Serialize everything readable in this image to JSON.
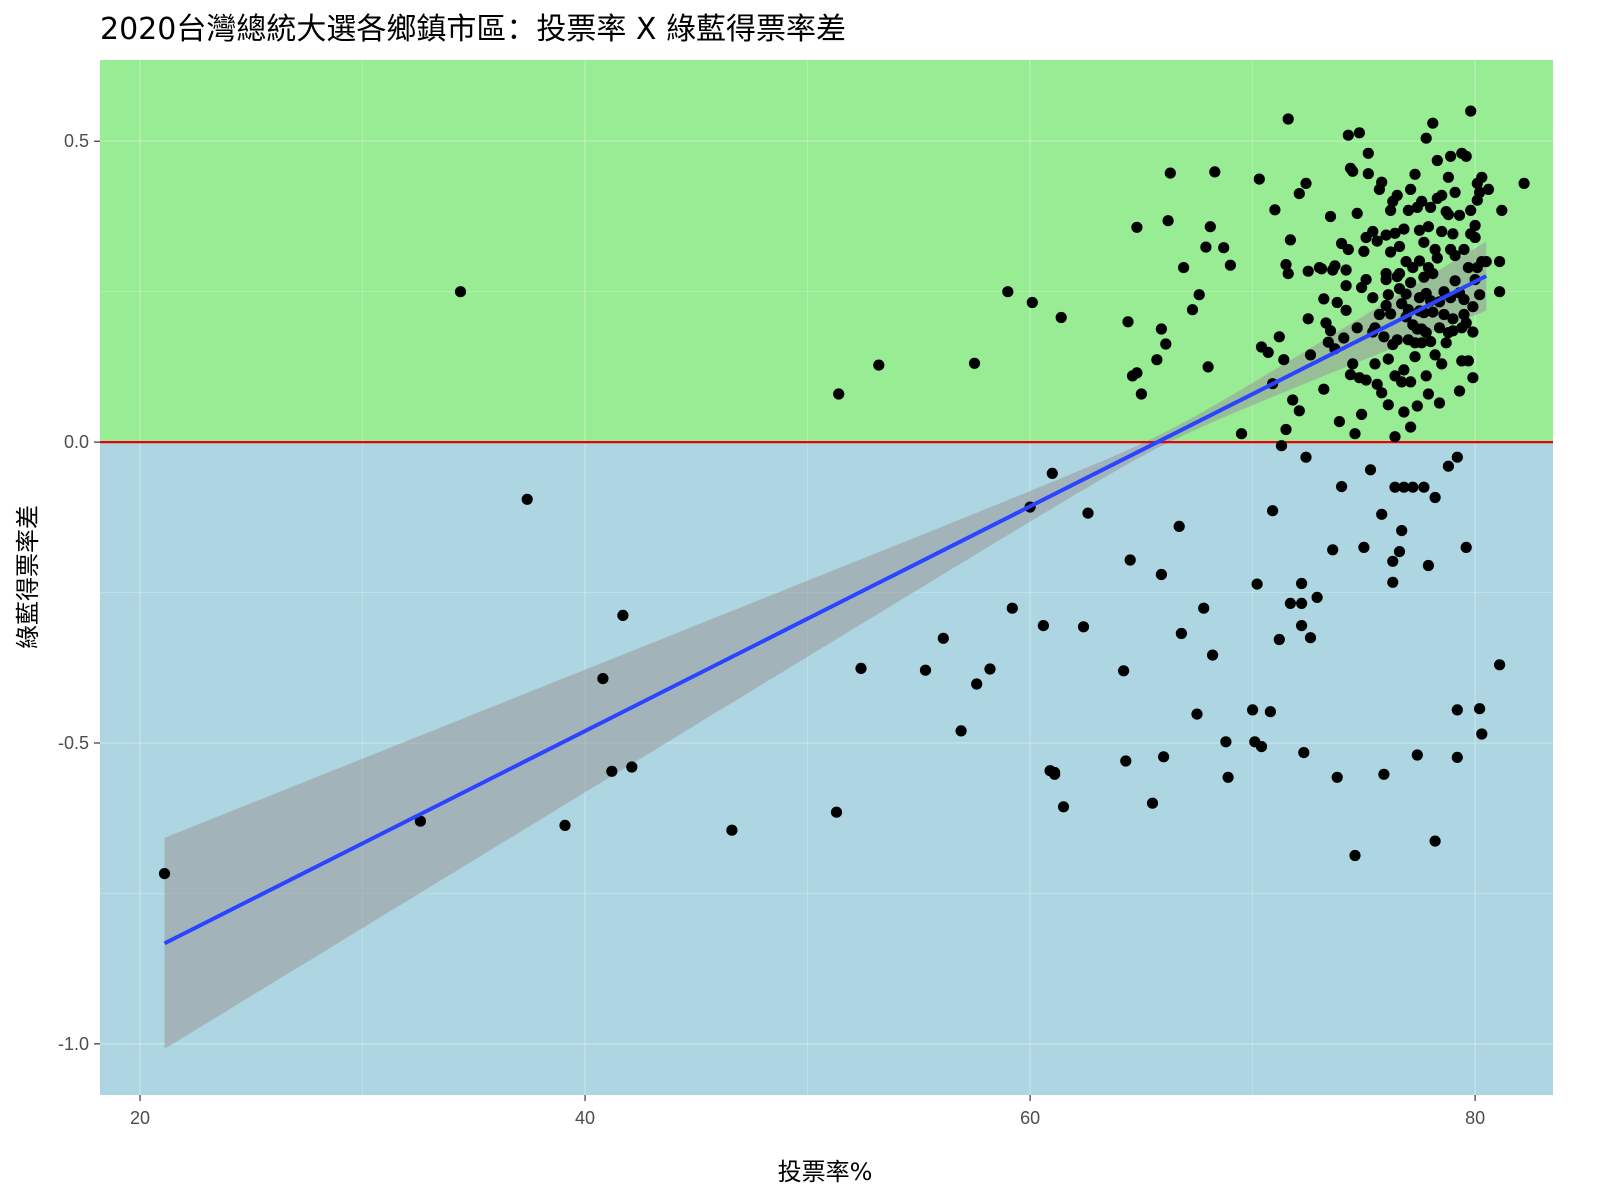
{
  "title": "2020台灣總統大選各鄉鎮市區：投票率 X 綠藍得票率差",
  "colors": {
    "positive_region": "#98EC94",
    "negative_region": "#ADD6E2",
    "zero_line": "#E8000B",
    "fit_line": "#2B44FF",
    "confidence_band": "#999999",
    "points": "#000000"
  },
  "chart_data": {
    "type": "scatter",
    "title": "2020台灣總統大選各鄉鎮市區：投票率 X 綠藍得票率差",
    "xlabel": "投票率%",
    "ylabel": "綠藍得票率差",
    "xlim": [
      18.2,
      83.5
    ],
    "ylim": [
      -1.085,
      0.635
    ],
    "x_ticks": [
      20,
      40,
      60,
      80
    ],
    "x_tick_labels": [
      "20",
      "40",
      "60",
      "80"
    ],
    "y_ticks": [
      0.5,
      0.0,
      -0.5,
      -1.0
    ],
    "y_tick_labels": [
      "0.5",
      "0.0",
      "-0.5",
      "-1.0"
    ],
    "grid": true,
    "reference_line": {
      "y": 0.0
    },
    "regions": [
      {
        "name": "positive",
        "y_from": 0.0,
        "y_to": 0.635
      },
      {
        "name": "negative",
        "y_from": -1.085,
        "y_to": 0.0
      }
    ],
    "fit": {
      "method": "linear",
      "x_range": [
        21.1,
        80.5
      ],
      "y_at_start": -0.833,
      "y_at_end": 0.276,
      "ci_at_start": [
        -1.0,
        -0.659
      ],
      "ci_at_end": [
        0.236,
        0.316
      ],
      "ci_narrowest_x": 66.0
    },
    "points": [
      [
        21.1,
        -0.717
      ],
      [
        32.6,
        -0.63
      ],
      [
        34.4,
        0.25
      ],
      [
        37.4,
        -0.095
      ],
      [
        39.1,
        -0.637
      ],
      [
        40.8,
        -0.393
      ],
      [
        41.2,
        -0.547
      ],
      [
        41.7,
        -0.288
      ],
      [
        42.1,
        -0.54
      ],
      [
        46.6,
        -0.645
      ],
      [
        51.3,
        -0.615
      ],
      [
        51.4,
        0.08
      ],
      [
        52.4,
        -0.376
      ],
      [
        53.2,
        0.128
      ],
      [
        55.3,
        -0.379
      ],
      [
        56.1,
        -0.326
      ],
      [
        56.9,
        -0.48
      ],
      [
        57.5,
        0.131
      ],
      [
        57.6,
        -0.402
      ],
      [
        58.2,
        -0.377
      ],
      [
        59.0,
        0.25
      ],
      [
        59.2,
        -0.276
      ],
      [
        60.0,
        -0.108
      ],
      [
        60.1,
        0.232
      ],
      [
        60.6,
        -0.305
      ],
      [
        60.9,
        -0.546
      ],
      [
        61.0,
        -0.052
      ],
      [
        61.1,
        -0.552
      ],
      [
        61.1,
        -0.549
      ],
      [
        61.4,
        0.207
      ],
      [
        61.5,
        -0.606
      ],
      [
        62.4,
        -0.307
      ],
      [
        62.6,
        -0.118
      ],
      [
        64.2,
        -0.38
      ],
      [
        64.3,
        -0.53
      ],
      [
        64.4,
        0.2
      ],
      [
        64.5,
        -0.196
      ],
      [
        64.6,
        0.11
      ],
      [
        64.8,
        0.115
      ],
      [
        64.8,
        0.357
      ],
      [
        65.0,
        0.08
      ],
      [
        65.5,
        -0.6
      ],
      [
        65.7,
        0.137
      ],
      [
        65.9,
        -0.22
      ],
      [
        65.9,
        0.188
      ],
      [
        66.0,
        -0.523
      ],
      [
        66.1,
        0.163
      ],
      [
        66.2,
        0.368
      ],
      [
        66.3,
        0.447
      ],
      [
        66.7,
        -0.14
      ],
      [
        66.8,
        -0.318
      ],
      [
        66.9,
        0.29
      ],
      [
        67.3,
        0.22
      ],
      [
        67.5,
        -0.452
      ],
      [
        67.6,
        0.245
      ],
      [
        67.8,
        -0.276
      ],
      [
        67.9,
        0.324
      ],
      [
        68.0,
        0.125
      ],
      [
        68.1,
        0.358
      ],
      [
        68.2,
        -0.354
      ],
      [
        68.3,
        0.449
      ],
      [
        68.7,
        0.323
      ],
      [
        68.8,
        -0.498
      ],
      [
        68.9,
        -0.557
      ],
      [
        69.0,
        0.294
      ],
      [
        69.5,
        0.014
      ],
      [
        70.0,
        -0.445
      ],
      [
        70.1,
        -0.498
      ],
      [
        70.2,
        -0.236
      ],
      [
        70.3,
        0.437
      ],
      [
        70.4,
        0.158
      ],
      [
        70.4,
        -0.506
      ],
      [
        70.7,
        0.149
      ],
      [
        70.8,
        -0.448
      ],
      [
        70.9,
        0.097
      ],
      [
        70.9,
        -0.114
      ],
      [
        71.0,
        0.386
      ],
      [
        71.2,
        -0.328
      ],
      [
        71.2,
        0.175
      ],
      [
        71.3,
        -0.006
      ],
      [
        71.4,
        0.137
      ],
      [
        71.5,
        0.295
      ],
      [
        71.5,
        0.021
      ],
      [
        71.6,
        0.28
      ],
      [
        71.6,
        0.537
      ],
      [
        71.7,
        -0.268
      ],
      [
        71.7,
        0.336
      ],
      [
        71.8,
        0.07
      ],
      [
        72.1,
        0.052
      ],
      [
        72.1,
        0.413
      ],
      [
        72.2,
        -0.268
      ],
      [
        72.2,
        -0.235
      ],
      [
        72.2,
        -0.305
      ],
      [
        72.3,
        -0.516
      ],
      [
        72.4,
        0.43
      ],
      [
        72.4,
        -0.025
      ],
      [
        72.5,
        0.205
      ],
      [
        72.5,
        0.284
      ],
      [
        72.6,
        -0.325
      ],
      [
        72.6,
        0.145
      ],
      [
        72.9,
        -0.258
      ],
      [
        73.0,
        0.29
      ],
      [
        73.1,
        0.288
      ],
      [
        73.2,
        0.238
      ],
      [
        73.2,
        0.088
      ],
      [
        73.3,
        0.198
      ],
      [
        73.4,
        0.166
      ],
      [
        73.5,
        0.185
      ],
      [
        73.5,
        0.375
      ],
      [
        73.6,
        -0.179
      ],
      [
        73.6,
        0.286
      ],
      [
        73.7,
        0.155
      ],
      [
        73.7,
        0.293
      ],
      [
        73.8,
        0.232
      ],
      [
        73.8,
        -0.557
      ],
      [
        73.9,
        0.034
      ],
      [
        74.0,
        0.33
      ],
      [
        74.0,
        -0.074
      ],
      [
        74.1,
        0.173
      ],
      [
        74.2,
        0.26
      ],
      [
        74.2,
        0.219
      ],
      [
        74.2,
        0.286
      ],
      [
        74.3,
        0.51
      ],
      [
        74.3,
        0.32
      ],
      [
        74.4,
        0.112
      ],
      [
        74.4,
        0.455
      ],
      [
        74.5,
        0.45
      ],
      [
        74.5,
        0.13
      ],
      [
        74.6,
        -0.687
      ],
      [
        74.6,
        0.014
      ],
      [
        74.7,
        0.19
      ],
      [
        74.7,
        0.38
      ],
      [
        74.8,
        0.514
      ],
      [
        74.8,
        0.107
      ],
      [
        74.9,
        0.257
      ],
      [
        74.9,
        0.046
      ],
      [
        75.0,
        0.317
      ],
      [
        75.0,
        -0.175
      ],
      [
        75.1,
        0.27
      ],
      [
        75.1,
        0.103
      ],
      [
        75.1,
        0.34
      ],
      [
        75.2,
        0.48
      ],
      [
        75.2,
        0.446
      ],
      [
        75.3,
        -0.046
      ],
      [
        75.4,
        0.35
      ],
      [
        75.4,
        0.24
      ],
      [
        75.4,
        0.183
      ],
      [
        75.5,
        0.19
      ],
      [
        75.5,
        0.13
      ],
      [
        75.6,
        0.096
      ],
      [
        75.6,
        0.334
      ],
      [
        75.7,
        0.212
      ],
      [
        75.7,
        0.42
      ],
      [
        75.8,
        0.432
      ],
      [
        75.8,
        0.082
      ],
      [
        75.8,
        -0.12
      ],
      [
        75.9,
        0.175
      ],
      [
        75.9,
        -0.552
      ],
      [
        76.0,
        0.27
      ],
      [
        76.0,
        0.227
      ],
      [
        76.0,
        0.28
      ],
      [
        76.0,
        0.344
      ],
      [
        76.1,
        0.138
      ],
      [
        76.1,
        0.062
      ],
      [
        76.1,
        0.245
      ],
      [
        76.2,
        0.316
      ],
      [
        76.2,
        0.213
      ],
      [
        76.2,
        0.385
      ],
      [
        76.3,
        -0.198
      ],
      [
        76.3,
        0.4
      ],
      [
        76.3,
        0.162
      ],
      [
        76.3,
        -0.233
      ],
      [
        76.4,
        0.347
      ],
      [
        76.4,
        0.11
      ],
      [
        76.4,
        -0.075
      ],
      [
        76.4,
        0.009
      ],
      [
        76.5,
        0.41
      ],
      [
        76.5,
        0.275
      ],
      [
        76.5,
        0.17
      ],
      [
        76.6,
        0.255
      ],
      [
        76.6,
        -0.182
      ],
      [
        76.6,
        0.28
      ],
      [
        76.6,
        0.325
      ],
      [
        76.7,
        0.1
      ],
      [
        76.7,
        0.23
      ],
      [
        76.7,
        -0.147
      ],
      [
        76.8,
        0.05
      ],
      [
        76.8,
        0.12
      ],
      [
        76.8,
        0.354
      ],
      [
        76.8,
        -0.075
      ],
      [
        76.9,
        0.3
      ],
      [
        76.9,
        0.208
      ],
      [
        76.9,
        0.246
      ],
      [
        77.0,
        0.22
      ],
      [
        77.0,
        0.385
      ],
      [
        77.0,
        0.17
      ],
      [
        77.1,
        0.1
      ],
      [
        77.1,
        0.025
      ],
      [
        77.1,
        0.42
      ],
      [
        77.1,
        0.265
      ],
      [
        77.2,
        0.29
      ],
      [
        77.2,
        0.195
      ],
      [
        77.2,
        -0.075
      ],
      [
        77.3,
        0.142
      ],
      [
        77.3,
        0.445
      ],
      [
        77.3,
        0.165
      ],
      [
        77.4,
        0.39
      ],
      [
        77.4,
        0.188
      ],
      [
        77.4,
        0.06
      ],
      [
        77.4,
        -0.52
      ],
      [
        77.5,
        0.352
      ],
      [
        77.5,
        0.218
      ],
      [
        77.5,
        0.24
      ],
      [
        77.5,
        0.301
      ],
      [
        77.6,
        0.188
      ],
      [
        77.6,
        0.4
      ],
      [
        77.6,
        0.165
      ],
      [
        77.7,
        -0.075
      ],
      [
        77.7,
        0.215
      ],
      [
        77.7,
        0.332
      ],
      [
        77.7,
        0.274
      ],
      [
        77.8,
        0.247
      ],
      [
        77.8,
        0.505
      ],
      [
        77.8,
        0.11
      ],
      [
        77.8,
        0.182
      ],
      [
        77.9,
        0.29
      ],
      [
        77.9,
        0.358
      ],
      [
        77.9,
        0.08
      ],
      [
        77.9,
        -0.205
      ],
      [
        78.0,
        0.235
      ],
      [
        78.0,
        0.167
      ],
      [
        78.0,
        0.39
      ],
      [
        78.1,
        0.53
      ],
      [
        78.1,
        0.28
      ],
      [
        78.1,
        0.216
      ],
      [
        78.2,
        0.32
      ],
      [
        78.2,
        0.145
      ],
      [
        78.2,
        -0.663
      ],
      [
        78.2,
        -0.092
      ],
      [
        78.3,
        0.405
      ],
      [
        78.3,
        0.306
      ],
      [
        78.3,
        0.468
      ],
      [
        78.4,
        0.233
      ],
      [
        78.4,
        0.19
      ],
      [
        78.4,
        0.065
      ],
      [
        78.5,
        0.35
      ],
      [
        78.5,
        0.13
      ],
      [
        78.5,
        0.41
      ],
      [
        78.6,
        0.212
      ],
      [
        78.6,
        0.25
      ],
      [
        78.7,
        0.383
      ],
      [
        78.7,
        0.165
      ],
      [
        78.8,
        0.378
      ],
      [
        78.8,
        0.44
      ],
      [
        78.8,
        -0.04
      ],
      [
        78.8,
        0.182
      ],
      [
        78.9,
        0.32
      ],
      [
        78.9,
        0.24
      ],
      [
        78.9,
        0.475
      ],
      [
        79.0,
        0.346
      ],
      [
        79.0,
        0.205
      ],
      [
        79.0,
        0.185
      ],
      [
        79.1,
        0.415
      ],
      [
        79.1,
        0.31
      ],
      [
        79.1,
        0.268
      ],
      [
        79.2,
        -0.025
      ],
      [
        79.2,
        -0.445
      ],
      [
        79.2,
        -0.524
      ],
      [
        79.3,
        0.248
      ],
      [
        79.3,
        0.377
      ],
      [
        79.3,
        0.085
      ],
      [
        79.4,
        0.19
      ],
      [
        79.4,
        0.48
      ],
      [
        79.4,
        0.135
      ],
      [
        79.5,
        0.212
      ],
      [
        79.5,
        0.32
      ],
      [
        79.5,
        0.237
      ],
      [
        79.6,
        0.475
      ],
      [
        79.6,
        0.198
      ],
      [
        79.6,
        -0.175
      ],
      [
        79.7,
        0.29
      ],
      [
        79.7,
        0.135
      ],
      [
        79.8,
        0.385
      ],
      [
        79.8,
        0.346
      ],
      [
        79.8,
        0.55
      ],
      [
        79.9,
        0.225
      ],
      [
        79.9,
        0.107
      ],
      [
        79.9,
        0.183
      ],
      [
        80.0,
        0.34
      ],
      [
        80.0,
        0.27
      ],
      [
        80.0,
        0.36
      ],
      [
        80.1,
        0.43
      ],
      [
        80.1,
        0.402
      ],
      [
        80.1,
        0.29
      ],
      [
        80.2,
        -0.443
      ],
      [
        80.2,
        0.245
      ],
      [
        80.2,
        0.415
      ],
      [
        80.3,
        0.3
      ],
      [
        80.3,
        0.44
      ],
      [
        80.3,
        -0.485
      ],
      [
        80.5,
        0.3
      ],
      [
        80.6,
        0.42
      ],
      [
        81.1,
        0.25
      ],
      [
        81.1,
        -0.37
      ],
      [
        81.1,
        0.3
      ],
      [
        81.2,
        0.385
      ],
      [
        82.2,
        0.43
      ]
    ]
  }
}
